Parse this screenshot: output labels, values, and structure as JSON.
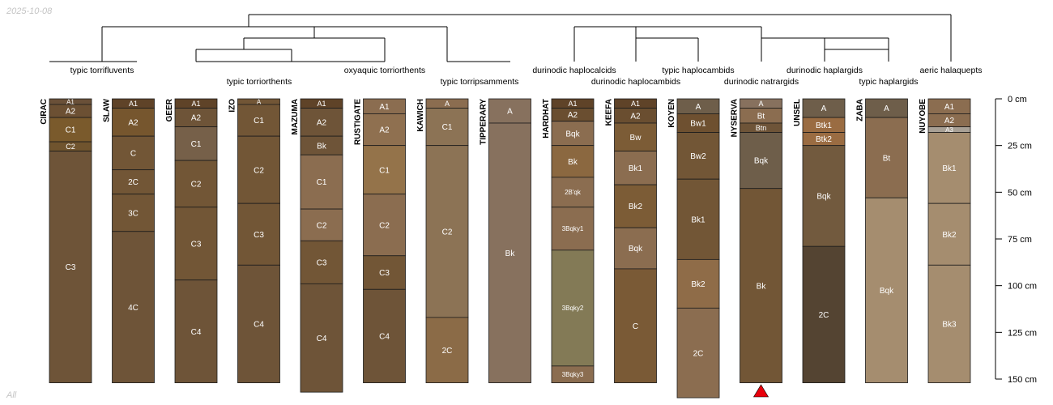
{
  "page": {
    "date": "2025-10-08",
    "footer": "All"
  },
  "chart_data": {
    "type": "soil-profile-sketch",
    "title": "",
    "depth_axis": {
      "unit": "cm",
      "min": 0,
      "max": 150,
      "ticks": [
        0,
        25,
        50,
        75,
        100,
        125,
        150
      ]
    },
    "profiles": [
      {
        "name": "CIRAC",
        "horizons": [
          {
            "name": "A1",
            "top": 0,
            "bottom": 3,
            "color": "#6a5038"
          },
          {
            "name": "A2",
            "top": 3,
            "bottom": 10,
            "color": "#6c5033"
          },
          {
            "name": "C1",
            "top": 10,
            "bottom": 23,
            "color": "#7a5a2c"
          },
          {
            "name": "C2",
            "top": 23,
            "bottom": 28,
            "color": "#70542e"
          },
          {
            "name": "C3",
            "top": 28,
            "bottom": 152,
            "color": "#6e5438"
          }
        ]
      },
      {
        "name": "SLAW",
        "horizons": [
          {
            "name": "A1",
            "top": 0,
            "bottom": 5,
            "color": "#5f4328"
          },
          {
            "name": "A2",
            "top": 5,
            "bottom": 20,
            "color": "#76562e"
          },
          {
            "name": "C",
            "top": 20,
            "bottom": 38,
            "color": "#725636"
          },
          {
            "name": "2C",
            "top": 38,
            "bottom": 51,
            "color": "#725636"
          },
          {
            "name": "3C",
            "top": 51,
            "bottom": 71,
            "color": "#725636"
          },
          {
            "name": "4C",
            "top": 71,
            "bottom": 152,
            "color": "#6e5438"
          }
        ]
      },
      {
        "name": "GEER",
        "horizons": [
          {
            "name": "A1",
            "top": 0,
            "bottom": 5,
            "color": "#5f4328"
          },
          {
            "name": "A2",
            "top": 5,
            "bottom": 15,
            "color": "#6e5438"
          },
          {
            "name": "C1",
            "top": 15,
            "bottom": 33,
            "color": "#766049"
          },
          {
            "name": "C2",
            "top": 33,
            "bottom": 58,
            "color": "#725636"
          },
          {
            "name": "C3",
            "top": 58,
            "bottom": 97,
            "color": "#725636"
          },
          {
            "name": "C4",
            "top": 97,
            "bottom": 152,
            "color": "#6e5438"
          }
        ]
      },
      {
        "name": "IZO",
        "horizons": [
          {
            "name": "A",
            "top": 0,
            "bottom": 3,
            "color": "#725636"
          },
          {
            "name": "C1",
            "top": 3,
            "bottom": 20,
            "color": "#725636"
          },
          {
            "name": "C2",
            "top": 20,
            "bottom": 56,
            "color": "#725636"
          },
          {
            "name": "C3",
            "top": 56,
            "bottom": 89,
            "color": "#725636"
          },
          {
            "name": "C4",
            "top": 89,
            "bottom": 152,
            "color": "#6e5438"
          }
        ]
      },
      {
        "name": "MAZUMA",
        "horizons": [
          {
            "name": "A1",
            "top": 0,
            "bottom": 5,
            "color": "#5f4328"
          },
          {
            "name": "A2",
            "top": 5,
            "bottom": 20,
            "color": "#6e5438"
          },
          {
            "name": "Bk",
            "top": 20,
            "bottom": 30,
            "color": "#6e5438"
          },
          {
            "name": "C1",
            "top": 30,
            "bottom": 59,
            "color": "#8b6d50"
          },
          {
            "name": "C2",
            "top": 59,
            "bottom": 76,
            "color": "#8b6d50"
          },
          {
            "name": "C3",
            "top": 76,
            "bottom": 99,
            "color": "#725636"
          },
          {
            "name": "C4",
            "top": 99,
            "bottom": 157,
            "color": "#6e5438"
          }
        ]
      },
      {
        "name": "RUSTIGATE",
        "horizons": [
          {
            "name": "A1",
            "top": 0,
            "bottom": 8,
            "color": "#8b6d50"
          },
          {
            "name": "A2",
            "top": 8,
            "bottom": 25,
            "color": "#8f7050"
          },
          {
            "name": "C1",
            "top": 25,
            "bottom": 51,
            "color": "#94734a"
          },
          {
            "name": "C2",
            "top": 51,
            "bottom": 84,
            "color": "#8b6d50"
          },
          {
            "name": "C3",
            "top": 84,
            "bottom": 102,
            "color": "#725636"
          },
          {
            "name": "C4",
            "top": 102,
            "bottom": 152,
            "color": "#6e5438"
          }
        ]
      },
      {
        "name": "KAWICH",
        "horizons": [
          {
            "name": "A",
            "top": 0,
            "bottom": 5,
            "color": "#8b6d50"
          },
          {
            "name": "C1",
            "top": 5,
            "bottom": 25,
            "color": "#8c7355"
          },
          {
            "name": "C2",
            "top": 25,
            "bottom": 117,
            "color": "#8c7355"
          },
          {
            "name": "2C",
            "top": 117,
            "bottom": 152,
            "color": "#8b6b47"
          }
        ]
      },
      {
        "name": "TIPPERARY",
        "horizons": [
          {
            "name": "A",
            "top": 0,
            "bottom": 13,
            "color": "#87715e"
          },
          {
            "name": "Bk",
            "top": 13,
            "bottom": 152,
            "color": "#87715e"
          }
        ]
      },
      {
        "name": "HARDHAT",
        "horizons": [
          {
            "name": "A1",
            "top": 0,
            "bottom": 5,
            "color": "#5f4328"
          },
          {
            "name": "A2",
            "top": 5,
            "bottom": 12,
            "color": "#6a4e30"
          },
          {
            "name": "Bqk",
            "top": 12,
            "bottom": 25,
            "color": "#8b6d50"
          },
          {
            "name": "Bk",
            "top": 25,
            "bottom": 42,
            "color": "#8b6840"
          },
          {
            "name": "2B'qk",
            "top": 42,
            "bottom": 58,
            "color": "#8b6d50"
          },
          {
            "name": "3Bqky1",
            "top": 58,
            "bottom": 81,
            "color": "#8b6d50"
          },
          {
            "name": "3Bqky2",
            "top": 81,
            "bottom": 143,
            "color": "#837a56"
          },
          {
            "name": "3Bqky3",
            "top": 143,
            "bottom": 152,
            "color": "#8b6d50"
          }
        ]
      },
      {
        "name": "KEEFA",
        "horizons": [
          {
            "name": "A1",
            "top": 0,
            "bottom": 5,
            "color": "#5f4328"
          },
          {
            "name": "A2",
            "top": 5,
            "bottom": 13,
            "color": "#6a4e30"
          },
          {
            "name": "Bw",
            "top": 13,
            "bottom": 28,
            "color": "#7c5c36"
          },
          {
            "name": "Bk1",
            "top": 28,
            "bottom": 46,
            "color": "#8b6d50"
          },
          {
            "name": "Bk2",
            "top": 46,
            "bottom": 69,
            "color": "#7c5c36"
          },
          {
            "name": "Bqk",
            "top": 69,
            "bottom": 91,
            "color": "#8b6d50"
          },
          {
            "name": "C",
            "top": 91,
            "bottom": 152,
            "color": "#7a5a36"
          }
        ]
      },
      {
        "name": "KOYEN",
        "horizons": [
          {
            "name": "A",
            "top": 0,
            "bottom": 8,
            "color": "#6e5e4a"
          },
          {
            "name": "Bw1",
            "top": 8,
            "bottom": 18,
            "color": "#6e5030"
          },
          {
            "name": "Bw2",
            "top": 18,
            "bottom": 43,
            "color": "#725636"
          },
          {
            "name": "Bk1",
            "top": 43,
            "bottom": 86,
            "color": "#725636"
          },
          {
            "name": "Bk2",
            "top": 86,
            "bottom": 112,
            "color": "#8f6c48"
          },
          {
            "name": "2C",
            "top": 112,
            "bottom": 160,
            "color": "#8b6d50"
          }
        ]
      },
      {
        "name": "NYSERVA",
        "horizons": [
          {
            "name": "A",
            "top": 0,
            "bottom": 5,
            "color": "#87715e"
          },
          {
            "name": "Bt",
            "top": 5,
            "bottom": 13,
            "color": "#8b6d50"
          },
          {
            "name": "Btn",
            "top": 13,
            "bottom": 18,
            "color": "#6e5438"
          },
          {
            "name": "Bqk",
            "top": 18,
            "bottom": 48,
            "color": "#6e5e4a"
          },
          {
            "name": "Bk",
            "top": 48,
            "bottom": 152,
            "color": "#725636"
          }
        ]
      },
      {
        "name": "UNSEL",
        "horizons": [
          {
            "name": "A",
            "top": 0,
            "bottom": 10,
            "color": "#6e5e4a"
          },
          {
            "name": "Btk1",
            "top": 10,
            "bottom": 18,
            "color": "#9a6c42"
          },
          {
            "name": "Btk2",
            "top": 18,
            "bottom": 25,
            "color": "#9a6c42"
          },
          {
            "name": "Bqk",
            "top": 25,
            "bottom": 79,
            "color": "#725a3e"
          },
          {
            "name": "2C",
            "top": 79,
            "bottom": 152,
            "color": "#544432"
          }
        ]
      },
      {
        "name": "ZABA",
        "horizons": [
          {
            "name": "A",
            "top": 0,
            "bottom": 10,
            "color": "#6e5e4a"
          },
          {
            "name": "Bt",
            "top": 10,
            "bottom": 53,
            "color": "#8b6d50"
          },
          {
            "name": "Bqk",
            "top": 53,
            "bottom": 152,
            "color": "#a58d6f"
          }
        ]
      },
      {
        "name": "NUYOBE",
        "horizons": [
          {
            "name": "A1",
            "top": 0,
            "bottom": 8,
            "color": "#8b6d50"
          },
          {
            "name": "A2",
            "top": 8,
            "bottom": 15,
            "color": "#8b6d50"
          },
          {
            "name": "A3",
            "top": 15,
            "bottom": 18,
            "color": "#a8a095"
          },
          {
            "name": "Bk1",
            "top": 18,
            "bottom": 56,
            "color": "#a58d6f"
          },
          {
            "name": "Bk2",
            "top": 56,
            "bottom": 89,
            "color": "#a58d6f"
          },
          {
            "name": "Bk3",
            "top": 89,
            "bottom": 152,
            "color": "#a58d6f"
          }
        ]
      }
    ],
    "taxa": [
      {
        "name": "typic torrifluvents",
        "members": [
          "CIRAC"
        ]
      },
      {
        "name": "typic torriorthents",
        "members": [
          "SLAW",
          "GEER",
          "IZO"
        ]
      },
      {
        "name": "oxyaquic torriorthents",
        "members": [
          "MAZUMA",
          "RUSTIGATE"
        ]
      },
      {
        "name": "typic torripsamments",
        "members": [
          "KAWICH",
          "TIPPERARY"
        ]
      },
      {
        "name": "durinodic haplocalcids",
        "members": [
          "HARDHAT"
        ]
      },
      {
        "name": "durinodic haplocambids",
        "members": [
          "KEEFA"
        ]
      },
      {
        "name": "typic haplocambids",
        "members": [
          "KOYEN"
        ]
      },
      {
        "name": "durinodic natrargids",
        "members": [
          "NYSERVA"
        ]
      },
      {
        "name": "durinodic haplargids",
        "members": [
          "UNSEL"
        ]
      },
      {
        "name": "typic haplargids",
        "members": [
          "ZABA"
        ]
      },
      {
        "name": "aeric halaquepts",
        "members": [
          "NUYOBE"
        ]
      }
    ],
    "highlight": {
      "profile": "NYSERVA",
      "color": "#e8000b",
      "marker": "triangle-up"
    }
  }
}
